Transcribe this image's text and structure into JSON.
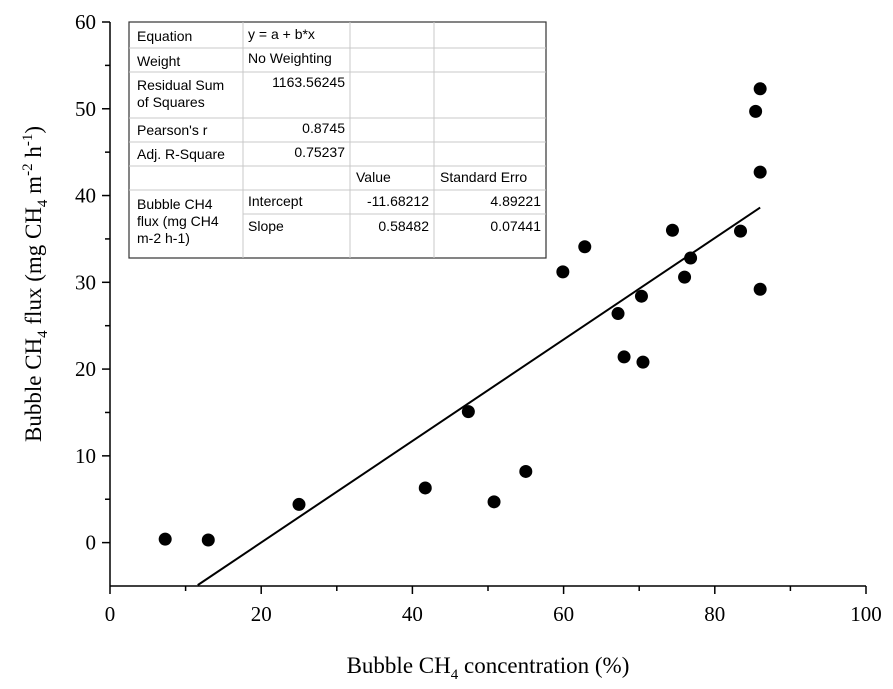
{
  "chart_data": {
    "type": "scatter",
    "xlabel_main": "Bubble CH",
    "xlabel_sub": "4",
    "xlabel_tail": " concentration (%)",
    "ylabel_main": "Bubble CH",
    "ylabel_sub": "4",
    "ylabel_mid": " flux (mg CH",
    "ylabel_sub2": "4",
    "ylabel_tail": " m",
    "ylabel_sup": "-2",
    "ylabel_tail2": " h",
    "ylabel_sup2": "-1",
    "ylabel_end": ")",
    "xlim": [
      0,
      100
    ],
    "ylim": [
      -5,
      60
    ],
    "x_ticks": [
      0,
      20,
      40,
      60,
      80,
      100
    ],
    "y_ticks": [
      0,
      10,
      20,
      30,
      40,
      50,
      60
    ],
    "grid": false,
    "points": [
      {
        "x": 7.3,
        "y": 0.4
      },
      {
        "x": 13.0,
        "y": 0.3
      },
      {
        "x": 25.0,
        "y": 4.4
      },
      {
        "x": 41.7,
        "y": 6.3
      },
      {
        "x": 47.4,
        "y": 15.1
      },
      {
        "x": 50.8,
        "y": 4.7
      },
      {
        "x": 55.0,
        "y": 8.2
      },
      {
        "x": 59.9,
        "y": 31.2
      },
      {
        "x": 62.8,
        "y": 34.1
      },
      {
        "x": 67.2,
        "y": 26.4
      },
      {
        "x": 68.0,
        "y": 21.4
      },
      {
        "x": 70.3,
        "y": 28.4
      },
      {
        "x": 70.5,
        "y": 20.8
      },
      {
        "x": 74.4,
        "y": 36.0
      },
      {
        "x": 76.0,
        "y": 30.6
      },
      {
        "x": 76.8,
        "y": 32.8
      },
      {
        "x": 83.4,
        "y": 35.9
      },
      {
        "x": 85.4,
        "y": 49.7
      },
      {
        "x": 86.0,
        "y": 52.3
      },
      {
        "x": 86.0,
        "y": 42.7
      },
      {
        "x": 86.0,
        "y": 29.2
      }
    ],
    "fit": {
      "intercept": -11.68212,
      "slope": 0.58482,
      "x_range": [
        11.6,
        86.0
      ]
    },
    "stats_table": {
      "rows": [
        [
          "Equation",
          "y = a + b*x",
          "",
          ""
        ],
        [
          "Weight",
          "No Weighting",
          "",
          ""
        ],
        [
          "Residual Sum of Squares",
          "1163.56245",
          "",
          ""
        ],
        [
          "Pearson's r",
          "0.8745",
          "",
          ""
        ],
        [
          "Adj. R-Square",
          "0.75237",
          "",
          ""
        ],
        [
          "",
          "",
          "Value",
          "Standard Erro"
        ],
        [
          "Bubble CH4 flux (mg CH4 m-2 h-1)",
          "Intercept",
          "-11.68212",
          "4.89221"
        ],
        [
          "",
          "Slope",
          "0.58482",
          "0.07441"
        ]
      ]
    }
  }
}
